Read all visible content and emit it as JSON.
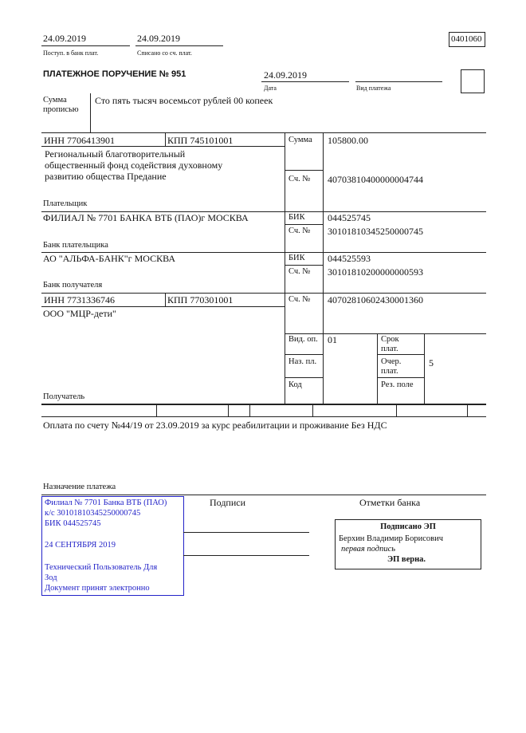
{
  "header": {
    "received_date": "24.09.2019",
    "received_label": "Поступ. в банк плат.",
    "debited_date": "24.09.2019",
    "debited_label": "Списано со сч. плат.",
    "form_code": "0401060"
  },
  "order": {
    "title": "ПЛАТЕЖНОЕ ПОРУЧЕНИЕ № 951",
    "date": "24.09.2019",
    "date_label": "Дата",
    "payment_type_label": "Вид платежа",
    "payment_type": ""
  },
  "amount_words": {
    "label_line1": "Сумма",
    "label_line2": "прописью",
    "value": "Сто пять тысяч восемьсот рублей 00 копеек"
  },
  "payer": {
    "inn": "ИНН 7706413901",
    "kpp": "КПП 745101001",
    "name_lines": [
      " Региональный благотворительный",
      "общественный фонд содействия духовному",
      "развитию общества Предание"
    ],
    "label": "Плательщик",
    "amount_label": "Сумма",
    "amount": "105800.00",
    "account_label": "Сч. №",
    "account": "40703810400000004744"
  },
  "payer_bank": {
    "name": "ФИЛИАЛ № 7701 БАНКА ВТБ (ПАО)г МОСКВА",
    "label": "Банк плательщика",
    "bik_label": "БИК",
    "bik": "044525745",
    "account_label": "Сч. №",
    "account": "30101810345250000745"
  },
  "payee_bank": {
    "name": "АО \"АЛЬФА-БАНК\"г МОСКВА",
    "label": "Банк получателя",
    "bik_label": "БИК",
    "bik": "044525593",
    "account_label": "Сч. №",
    "account": "30101810200000000593"
  },
  "payee": {
    "inn": "ИНН 7731336746",
    "kpp": "КПП 770301001",
    "name": "ООО \"МЦР-дети\"",
    "label": "Получатель",
    "account_label": "Сч. №",
    "account": "40702810602430001360"
  },
  "codes": {
    "op_type_label": "Вид. оп.",
    "op_type": "01",
    "purpose_code_label": "Наз. пл.",
    "code_label": "Код",
    "term_label_1": "Срок",
    "term_label_2": "плат.",
    "priority_label_1": "Очер.",
    "priority_label_2": "плат.",
    "priority": "5",
    "reserve_label": "Рез. поле"
  },
  "purpose": {
    "text": "Оплата по счету №44/19 от 23.09.2019 за курс реабилитации и проживание Без НДС",
    "label": "Назначение платежа"
  },
  "bank_stamp": {
    "lines": [
      "Филиал № 7701 Банка ВТБ (ПАО)",
      "к/с 30101810345250000745",
      "БИК 044525745",
      "24 СЕНТЯБРЯ 2019",
      "Технический Пользователь Для",
      "Зод",
      "Документ принят электронно"
    ],
    "color": "#2323c8"
  },
  "signatures": {
    "label": "Подписи",
    "bank_marks_label": "Отметки банка"
  },
  "esign": {
    "title": "Подписано ЭП",
    "signer": "Берхин Владимир Борисович",
    "role": "первая подпись",
    "status": "ЭП верна."
  }
}
